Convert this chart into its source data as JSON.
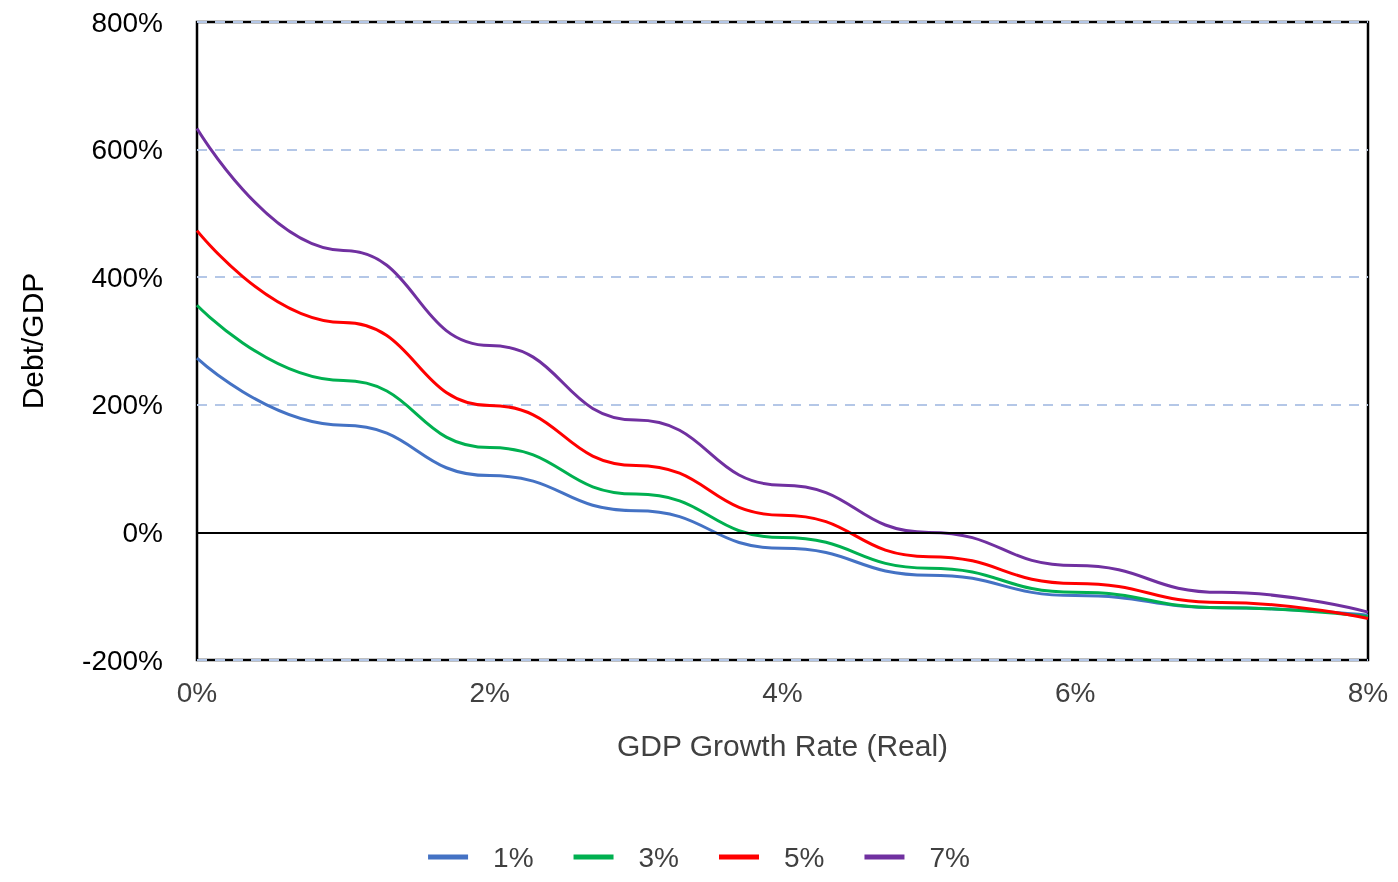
{
  "chart_data": {
    "type": "line",
    "xlabel": "GDP Growth Rate (Real)",
    "ylabel": "Debt/GDP",
    "xlim": [
      0,
      8
    ],
    "xticks": [
      {
        "value": 0,
        "label": "0%"
      },
      {
        "value": 2,
        "label": "2%"
      },
      {
        "value": 4,
        "label": "4%"
      },
      {
        "value": 6,
        "label": "6%"
      },
      {
        "value": 8,
        "label": "8%"
      }
    ],
    "ylim": [
      -200,
      800
    ],
    "yticks": [
      {
        "value": -200,
        "label": "-200%"
      },
      {
        "value": 0,
        "label": "0%"
      },
      {
        "value": 200,
        "label": "200%"
      },
      {
        "value": 400,
        "label": "400%"
      },
      {
        "value": 600,
        "label": "600%"
      },
      {
        "value": 800,
        "label": "800%"
      }
    ],
    "x": [
      0,
      1,
      2,
      3,
      4,
      5,
      6,
      7,
      8
    ],
    "series": [
      {
        "name": "1%",
        "color": "#4472c4",
        "values": [
          273,
          168,
          89,
          34,
          -25,
          -67,
          -99,
          -118,
          -130
        ]
      },
      {
        "name": "3%",
        "color": "#00b050",
        "values": [
          356,
          238,
          133,
          60,
          -8,
          -56,
          -94,
          -118,
          -132
        ]
      },
      {
        "name": "5%",
        "color": "#ff0000",
        "values": [
          473,
          329,
          199,
          105,
          27,
          -38,
          -80,
          -110,
          -135
        ]
      },
      {
        "name": "7%",
        "color": "#7030a0",
        "values": [
          633,
          442,
          293,
          176,
          74,
          0,
          -52,
          -94,
          -125
        ]
      }
    ],
    "ref_lines": [
      {
        "axis": "y",
        "value": 0,
        "color": "#000000"
      }
    ],
    "grid": "y",
    "legend": "bottom",
    "marker": "none",
    "line_style": "solid"
  }
}
